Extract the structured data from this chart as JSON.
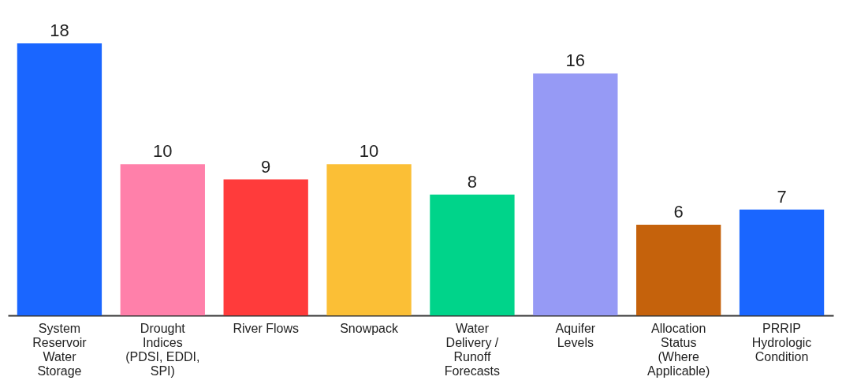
{
  "chart_data": {
    "type": "bar",
    "data_labels": true,
    "categories": [
      "System Reservoir Water Storage",
      "Drought Indices (PDSI, EDDI, SPI)",
      "River Flows",
      "Snowpack",
      "Water Delivery / Runoff Forecasts",
      "Aquifer Levels",
      "Allocation Status (Where Applicable)",
      "PRRIP Hydrologic Condition"
    ],
    "values": [
      18,
      10,
      9,
      10,
      8,
      16,
      6,
      7
    ],
    "colors": [
      "#1a66ff",
      "#ff80aa",
      "#ff3b3b",
      "#fbbf36",
      "#00d48a",
      "#969af5",
      "#c5620c",
      "#1a66ff"
    ]
  }
}
